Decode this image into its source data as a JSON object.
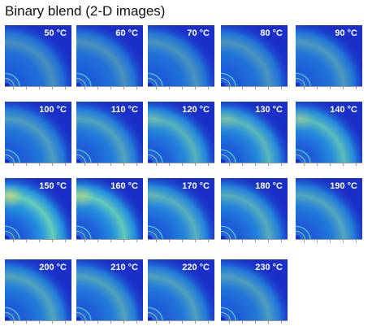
{
  "title": "Binary blend (2-D images)",
  "images": [
    {
      "temp": "50 °C",
      "intensity": 0.3
    },
    {
      "temp": "60 °C",
      "intensity": 0.32
    },
    {
      "temp": "70 °C",
      "intensity": 0.34
    },
    {
      "temp": "80 °C",
      "intensity": 0.36
    },
    {
      "temp": "90 °C",
      "intensity": 0.38
    },
    {
      "temp": "100 °C",
      "intensity": 0.42
    },
    {
      "temp": "110 °C",
      "intensity": 0.48
    },
    {
      "temp": "120 °C",
      "intensity": 0.62
    },
    {
      "temp": "130 °C",
      "intensity": 0.66
    },
    {
      "temp": "140 °C",
      "intensity": 0.7
    },
    {
      "temp": "150 °C",
      "intensity": 0.85
    },
    {
      "temp": "160 °C",
      "intensity": 0.8
    },
    {
      "temp": "170 °C",
      "intensity": 0.6
    },
    {
      "temp": "180 °C",
      "intensity": 0.56
    },
    {
      "temp": "190 °C",
      "intensity": 0.5
    },
    {
      "temp": "200 °C",
      "intensity": 0.48
    },
    {
      "temp": "210 °C",
      "intensity": 0.46
    },
    {
      "temp": "220 °C",
      "intensity": 0.44
    },
    {
      "temp": "230 °C",
      "intensity": 0.42
    }
  ],
  "colors": {
    "background": "#1a2fc8",
    "ring_outer": "#1f7fe6",
    "ring_mid": "#28b7e6",
    "ring_peak": "#6fe0b6",
    "hot": "#f2e25a",
    "label": "#ffffff"
  }
}
